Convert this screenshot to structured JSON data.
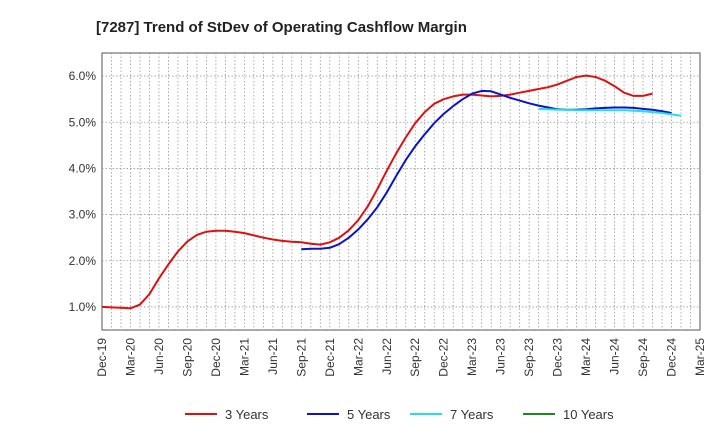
{
  "chart_data": {
    "type": "line",
    "title": "[7287]  Trend of StDev of Operating Cashflow Margin",
    "xlabel": "",
    "ylabel": "",
    "x_ticks": [
      "Dec-19",
      "Mar-20",
      "Jun-20",
      "Sep-20",
      "Dec-20",
      "Mar-21",
      "Jun-21",
      "Sep-21",
      "Dec-21",
      "Mar-22",
      "Jun-22",
      "Sep-22",
      "Dec-22",
      "Mar-23",
      "Jun-23",
      "Sep-23",
      "Dec-23",
      "Mar-24",
      "Jun-24",
      "Sep-24",
      "Dec-24",
      "Mar-25"
    ],
    "y_ticks": [
      "1.0%",
      "2.0%",
      "3.0%",
      "4.0%",
      "5.0%",
      "6.0%"
    ],
    "ylim": [
      0.5,
      6.5
    ],
    "grid": true,
    "legend_position": "bottom",
    "series": [
      {
        "name": "3 Years",
        "color": "#dd1111",
        "start_index": 0,
        "values": [
          1.0,
          0.99,
          0.98,
          0.97,
          1.05,
          1.28,
          1.62,
          1.92,
          2.2,
          2.42,
          2.56,
          2.63,
          2.65,
          2.65,
          2.63,
          2.6,
          2.55,
          2.5,
          2.46,
          2.43,
          2.41,
          2.4,
          2.37,
          2.35,
          2.4,
          2.5,
          2.66,
          2.88,
          3.18,
          3.55,
          3.95,
          4.33,
          4.67,
          4.98,
          5.22,
          5.4,
          5.5,
          5.56,
          5.6,
          5.6,
          5.58,
          5.56,
          5.57,
          5.6,
          5.64,
          5.68,
          5.72,
          5.76,
          5.82,
          5.9,
          5.98,
          6.01,
          5.98,
          5.9,
          5.78,
          5.64,
          5.57,
          5.57,
          5.62
        ]
      },
      {
        "name": "5 Years",
        "color": "#0a14c8",
        "start_index": 21,
        "values": [
          2.25,
          2.26,
          2.26,
          2.28,
          2.36,
          2.5,
          2.68,
          2.9,
          3.16,
          3.48,
          3.84,
          4.18,
          4.48,
          4.74,
          4.98,
          5.18,
          5.35,
          5.5,
          5.62,
          5.68,
          5.67,
          5.6,
          5.53,
          5.47,
          5.41,
          5.36,
          5.32,
          5.28,
          5.27,
          5.27,
          5.28,
          5.3,
          5.31,
          5.32,
          5.32,
          5.31,
          5.29,
          5.27,
          5.24,
          5.2
        ]
      },
      {
        "name": "7 Years",
        "color": "#22e0e8",
        "start_index": 46,
        "values": [
          5.29,
          5.28,
          5.27,
          5.27,
          5.26,
          5.26,
          5.26,
          5.26,
          5.26,
          5.26,
          5.25,
          5.24,
          5.22,
          5.2,
          5.17,
          5.14
        ]
      },
      {
        "name": "10 Years",
        "color": "#1a8a1a",
        "start_index": 0,
        "values": []
      }
    ]
  }
}
